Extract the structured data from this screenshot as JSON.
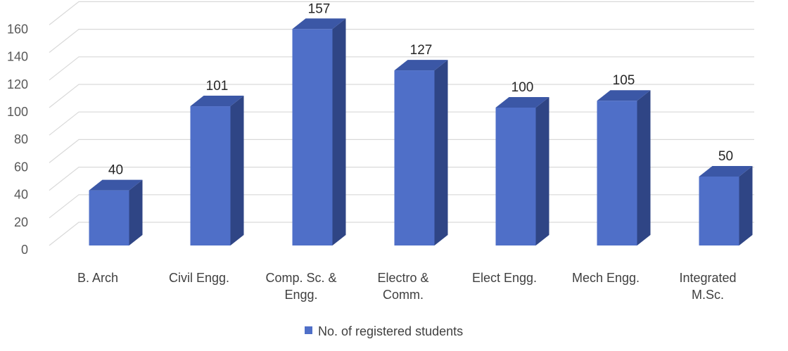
{
  "chart_data": {
    "type": "bar",
    "style": "3d-column",
    "categories": [
      [
        "B. Arch"
      ],
      [
        "Civil Engg."
      ],
      [
        "Comp. Sc. &",
        "Engg."
      ],
      [
        "Electro &",
        "Comm."
      ],
      [
        "Elect Engg."
      ],
      [
        "Mech Engg."
      ],
      [
        "Integrated",
        "M.Sc."
      ]
    ],
    "series": [
      {
        "name": "No. of registered students",
        "values": [
          40,
          101,
          157,
          127,
          100,
          105,
          50
        ]
      }
    ],
    "data_labels": true,
    "yticks": [
      0,
      20,
      40,
      60,
      80,
      100,
      120,
      140,
      160
    ],
    "ylim": [
      0,
      180
    ],
    "grid": true,
    "legend": "bottom-center",
    "colors": {
      "front": "#4f6fc8",
      "side": "#2f4585",
      "top": "#3b57a6",
      "grid": "#d9d9d9"
    }
  }
}
